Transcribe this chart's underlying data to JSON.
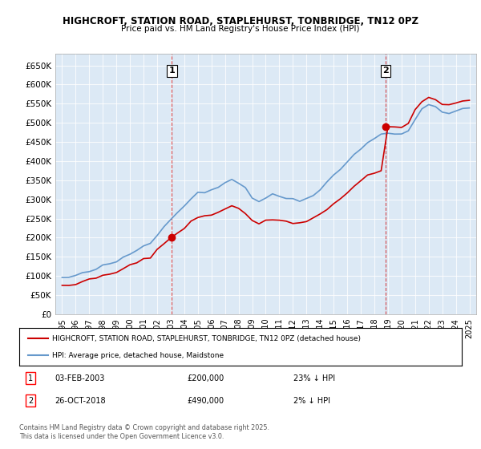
{
  "title": "HIGHCROFT, STATION ROAD, STAPLEHURST, TONBRIDGE, TN12 0PZ",
  "subtitle": "Price paid vs. HM Land Registry's House Price Index (HPI)",
  "background_color": "#dce9f5",
  "plot_bg_color": "#dce9f5",
  "red_line_color": "#cc0000",
  "blue_line_color": "#6699cc",
  "sale1_date": 2003.09,
  "sale1_price": 200000,
  "sale1_label": "1",
  "sale2_date": 2018.82,
  "sale2_price": 490000,
  "sale2_label": "2",
  "ylim_min": 0,
  "ylim_max": 680000,
  "ytick_step": 50000,
  "xlim_min": 1994.5,
  "xlim_max": 2025.5,
  "footer_text": "Contains HM Land Registry data © Crown copyright and database right 2025.\nThis data is licensed under the Open Government Licence v3.0.",
  "legend_label_red": "HIGHCROFT, STATION ROAD, STAPLEHURST, TONBRIDGE, TN12 0PZ (detached house)",
  "legend_label_blue": "HPI: Average price, detached house, Maidstone",
  "table_row1": "03-FEB-2003        £200,000        23% ↓ HPI",
  "table_row2": "26-OCT-2018        £490,000          2% ↓ HPI"
}
